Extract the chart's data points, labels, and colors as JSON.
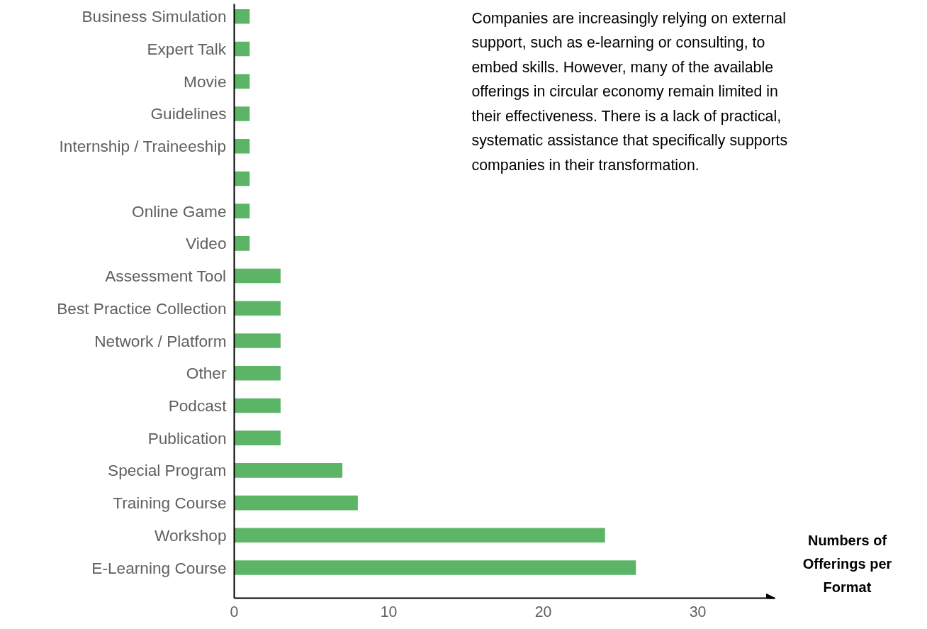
{
  "chart_data": {
    "type": "bar",
    "orientation": "horizontal",
    "xlabel": "Numbers of Offerings per Format",
    "categories": [
      "Business Simulation",
      "Expert Talk",
      "Movie",
      "Guidelines",
      "Internship / Traineeship",
      null,
      "Online Game",
      "Video",
      "Assessment Tool",
      "Best Practice Collection",
      "Network / Platform",
      "Other",
      "Podcast",
      "Publication",
      "Special Program",
      "Training Course",
      "Workshop",
      "E-Learning Course"
    ],
    "values": [
      1,
      1,
      1,
      1,
      1,
      1,
      1,
      1,
      3,
      3,
      3,
      3,
      3,
      3,
      7,
      8,
      24,
      26
    ],
    "color": "#5cb567",
    "xlim": [
      0,
      35
    ],
    "xticks": [
      0,
      10,
      20,
      30
    ],
    "grid": false,
    "annotations": [
      "Companies are increasingly relying on external support, such as e-learning or consulting, to embed skills. However, many of the available offerings in circular economy remain limited in their effectiveness. There is a lack of practical, systematic assistance that specifically supports companies in their transformation."
    ]
  }
}
